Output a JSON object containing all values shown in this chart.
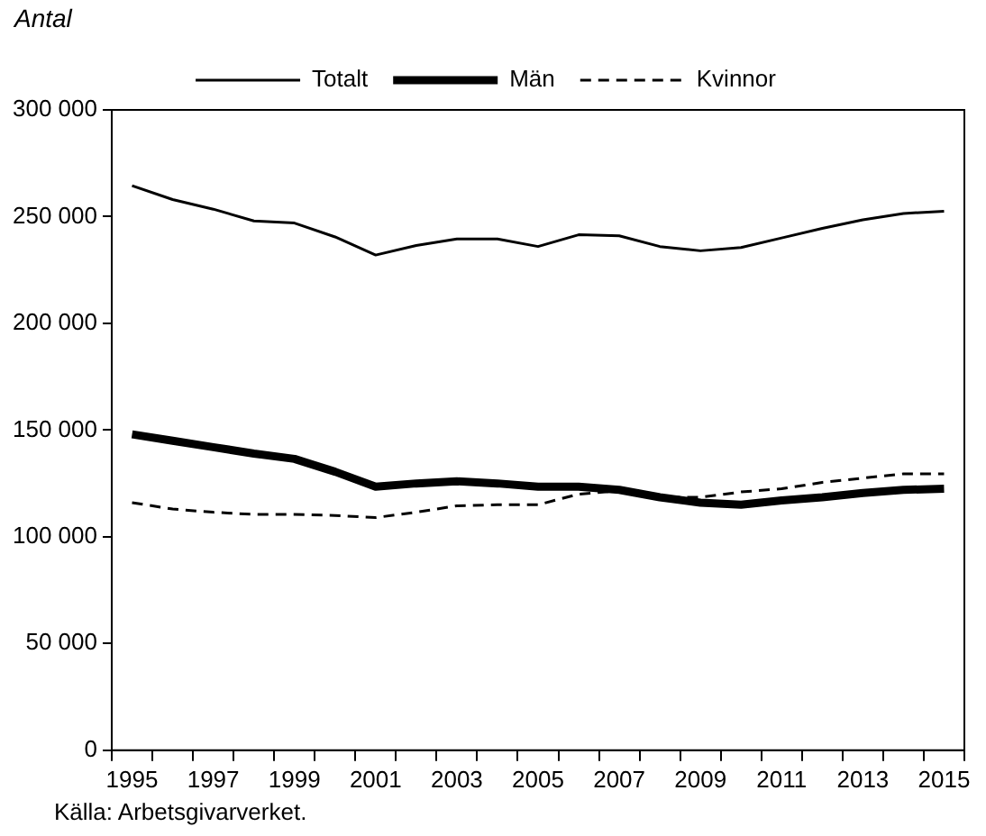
{
  "chart_data": {
    "type": "line",
    "ylabel": "Antal",
    "categories": [
      "1995",
      null,
      "1997",
      null,
      "1999",
      null,
      "2001",
      null,
      "2003",
      null,
      "2005",
      null,
      "2007",
      null,
      "2009",
      null,
      "2011",
      null,
      "2013",
      null,
      "2015"
    ],
    "series": [
      {
        "name": "Totalt",
        "color": "#000000",
        "line_style": "solid",
        "values": [
          264500,
          258000,
          253500,
          248000,
          247000,
          240500,
          232000,
          236500,
          239500,
          239500,
          236000,
          241500,
          241000,
          236000,
          234000,
          235500,
          240000,
          244500,
          248500,
          251500,
          252500
        ]
      },
      {
        "name": "Män",
        "color": "#000000",
        "line_style": "solid",
        "values": [
          148000,
          145000,
          142000,
          139000,
          136500,
          130500,
          123500,
          125000,
          126000,
          125000,
          123500,
          123500,
          122000,
          118500,
          116000,
          115000,
          117000,
          118500,
          120500,
          122000,
          122500
        ]
      },
      {
        "name": "Kvinnor",
        "color": "#000000",
        "line_style": "dashed",
        "values": [
          116000,
          113000,
          111500,
          110500,
          110500,
          110000,
          109000,
          111500,
          114500,
          115000,
          115000,
          120000,
          121500,
          118500,
          118500,
          121000,
          122500,
          125500,
          127500,
          129500,
          129500
        ]
      }
    ],
    "ylim": [
      0,
      300000
    ],
    "yticks": [
      0,
      {
        "value": 50000,
        "label": "50 000"
      },
      {
        "value": 100000,
        "label": "100 000"
      },
      {
        "value": 150000,
        "label": "150 000"
      },
      {
        "value": 200000,
        "label": "200 000"
      },
      {
        "value": 250000,
        "label": "250 000"
      },
      {
        "value": 300000,
        "label": "300 000"
      }
    ],
    "grid": false,
    "legend": "top",
    "marker": "none",
    "annotations": [
      "Källa: Arbetsgivarverket."
    ]
  }
}
